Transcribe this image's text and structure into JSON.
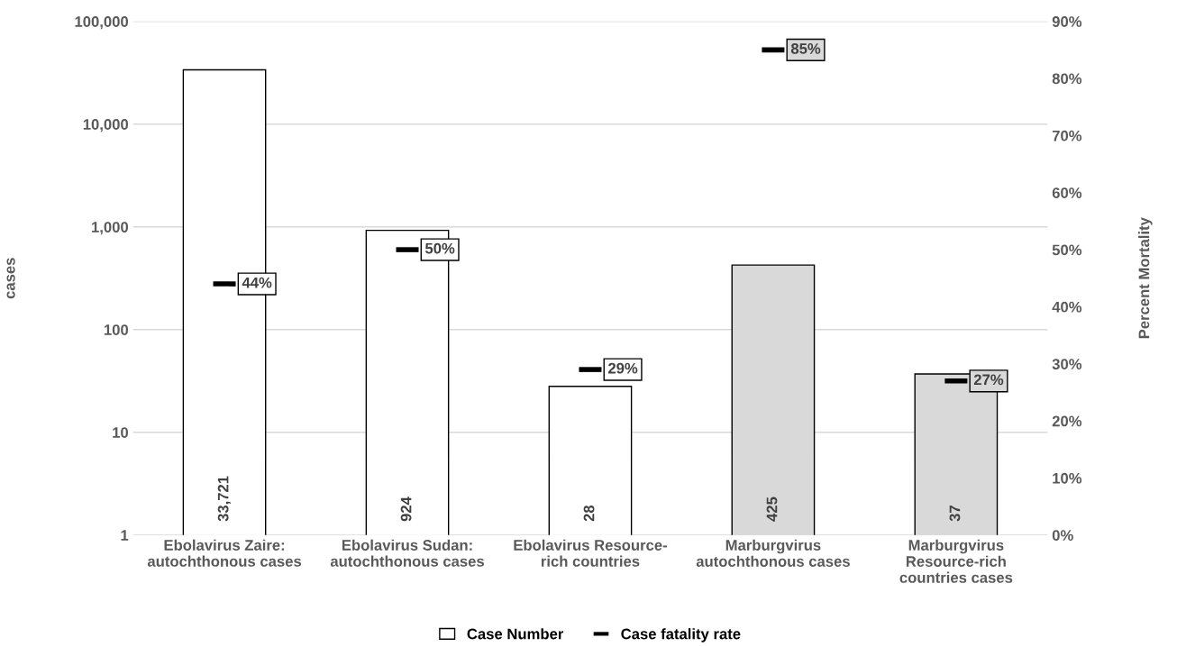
{
  "chart_data": {
    "type": "bar",
    "categories": [
      "Ebolavirus Zaire:\nautochthonous cases",
      "Ebolavirus Sudan:\nautochthonous cases",
      "Ebolavirus Resource-\nrich countries",
      "Marburgvirus\nautochthonous cases",
      "Marburgvirus\nResource-rich\ncountries cases"
    ],
    "series": [
      {
        "name": "Case Number",
        "colors": [
          "#ffffff",
          "#ffffff",
          "#ffffff",
          "#d9d9d9",
          "#d9d9d9"
        ],
        "values": [
          33721,
          924,
          28,
          425,
          37
        ],
        "value_labels": [
          "33,721",
          "924",
          "28",
          "425",
          "37"
        ]
      },
      {
        "name": "Case fatality rate",
        "type": "scatter",
        "axis": "y2",
        "color": "#000000",
        "values": [
          44,
          50,
          29,
          85,
          27
        ],
        "value_labels": [
          "44%",
          "50%",
          "29%",
          "85%",
          "27%"
        ]
      }
    ],
    "ylabel": "cases",
    "y2label": "Percent Mortality",
    "log": "y",
    "ylim": [
      1,
      100000
    ],
    "yticks": [
      {
        "value": 1,
        "label": "1"
      },
      {
        "value": 10,
        "label": "10"
      },
      {
        "value": 100,
        "label": "100"
      },
      {
        "value": 1000,
        "label": "1,000"
      },
      {
        "value": 10000,
        "label": "10,000"
      },
      {
        "value": 100000,
        "label": "100,000"
      }
    ],
    "y2lim": [
      0,
      90
    ],
    "y2ticks": [
      {
        "value": 0,
        "label": "0%"
      },
      {
        "value": 10,
        "label": "10%"
      },
      {
        "value": 20,
        "label": "20%"
      },
      {
        "value": 30,
        "label": "30%"
      },
      {
        "value": 40,
        "label": "40%"
      },
      {
        "value": 50,
        "label": "50%"
      },
      {
        "value": 60,
        "label": "60%"
      },
      {
        "value": 70,
        "label": "70%"
      },
      {
        "value": 80,
        "label": "80%"
      },
      {
        "value": 90,
        "label": "90%"
      }
    ],
    "grid": "y",
    "legend": "bottom"
  }
}
